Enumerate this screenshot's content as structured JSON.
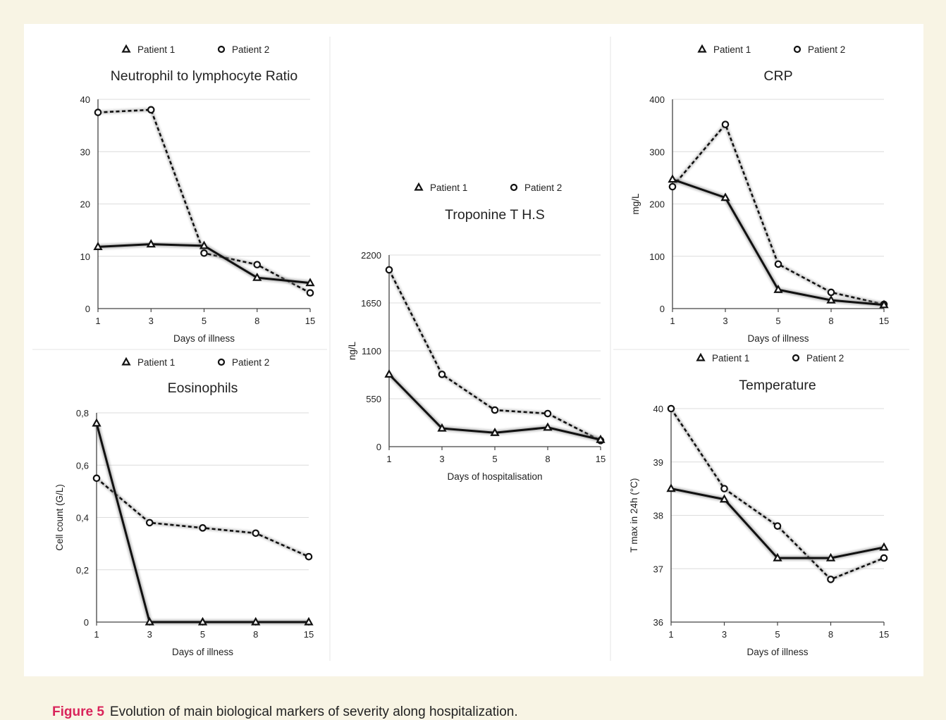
{
  "caption": {
    "label": "Figure 5",
    "text": "Evolution of main biological markers of severity along hospitalization."
  },
  "chart_data": [
    {
      "id": "nlr",
      "type": "line",
      "title": "Neutrophil to lymphocyte Ratio",
      "xlabel": "Days of illness",
      "ylabel": "",
      "categories": [
        "1",
        "3",
        "5",
        "8",
        "15"
      ],
      "ylim": [
        0,
        40
      ],
      "yticks": [
        "0",
        "10",
        "20",
        "30",
        "40"
      ],
      "series": [
        {
          "name": "Patient 1",
          "values": [
            11.8,
            12.3,
            12.0,
            5.9,
            4.9
          ]
        },
        {
          "name": "Patient 2",
          "values": [
            37.5,
            38.0,
            10.6,
            8.4,
            3.0
          ]
        }
      ]
    },
    {
      "id": "troponine",
      "type": "line",
      "title": "Troponine T H.S",
      "xlabel": "Days of hospitalisation",
      "ylabel": "ng/L",
      "categories": [
        "1",
        "3",
        "5",
        "8",
        "15"
      ],
      "ylim": [
        0,
        2200
      ],
      "yticks": [
        "0",
        "550",
        "1100",
        "1650",
        "2200"
      ],
      "series": [
        {
          "name": "Patient 1",
          "values": [
            830,
            210,
            160,
            220,
            80
          ]
        },
        {
          "name": "Patient 2",
          "values": [
            2030,
            830,
            420,
            380,
            70
          ]
        }
      ]
    },
    {
      "id": "crp",
      "type": "line",
      "title": "CRP",
      "xlabel": "Days of illness",
      "ylabel": "mg/L",
      "categories": [
        "1",
        "3",
        "5",
        "8",
        "15"
      ],
      "ylim": [
        0,
        400
      ],
      "yticks": [
        "0",
        "100",
        "200",
        "300",
        "400"
      ],
      "series": [
        {
          "name": "Patient 1",
          "values": [
            247,
            212,
            36,
            16,
            7
          ]
        },
        {
          "name": "Patient 2",
          "values": [
            233,
            352,
            85,
            31,
            8
          ]
        }
      ]
    },
    {
      "id": "eosinophils",
      "type": "line",
      "title": "Eosinophils",
      "xlabel": "Days of illness",
      "ylabel": "Cell count (G/L)",
      "categories": [
        "1",
        "3",
        "5",
        "8",
        "15"
      ],
      "ylim": [
        0,
        0.8
      ],
      "yticks": [
        "0",
        "0,2",
        "0,4",
        "0,6",
        "0,8"
      ],
      "series": [
        {
          "name": "Patient 1",
          "values": [
            0.76,
            0.0,
            0.0,
            0.0,
            0.0
          ]
        },
        {
          "name": "Patient 2",
          "values": [
            0.55,
            0.38,
            0.36,
            0.34,
            0.25
          ]
        }
      ]
    },
    {
      "id": "temperature",
      "type": "line",
      "title": "Temperature",
      "xlabel": "Days of illness",
      "ylabel": "T max in 24h (°C)",
      "categories": [
        "1",
        "3",
        "5",
        "8",
        "15"
      ],
      "ylim": [
        36,
        40
      ],
      "yticks": [
        "36",
        "37",
        "38",
        "39",
        "40"
      ],
      "series": [
        {
          "name": "Patient 1",
          "values": [
            38.5,
            38.3,
            37.2,
            37.2,
            37.4
          ]
        },
        {
          "name": "Patient 2",
          "values": [
            40.0,
            38.5,
            37.8,
            36.8,
            37.2
          ]
        }
      ]
    }
  ]
}
